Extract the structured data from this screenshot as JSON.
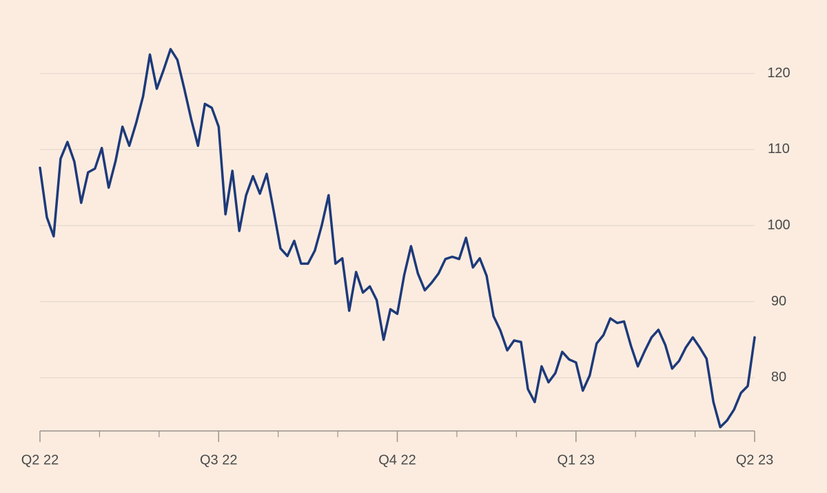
{
  "chart_data": {
    "type": "line",
    "categories": [
      "Q2 22",
      null,
      null,
      null,
      null,
      null,
      null,
      null,
      null,
      null,
      null,
      null,
      null,
      null,
      null,
      null,
      null,
      null,
      null,
      null,
      null,
      null,
      null,
      null,
      null,
      null,
      "Q3 22",
      null,
      null,
      null,
      null,
      null,
      null,
      null,
      null,
      null,
      null,
      null,
      null,
      null,
      null,
      null,
      null,
      null,
      null,
      null,
      null,
      null,
      null,
      null,
      null,
      null,
      "Q4 22",
      null,
      null,
      null,
      null,
      null,
      null,
      null,
      null,
      null,
      null,
      null,
      null,
      null,
      null,
      null,
      null,
      null,
      null,
      null,
      null,
      null,
      null,
      null,
      null,
      null,
      "Q1 23",
      null,
      null,
      null,
      null,
      null,
      null,
      null,
      null,
      null,
      null,
      null,
      null,
      null,
      null,
      null,
      null,
      null,
      null,
      null,
      null,
      null,
      null,
      null,
      null,
      null,
      "Q2 23"
    ],
    "values": [
      107.6,
      101.1,
      98.6,
      108.8,
      111,
      108.4,
      103,
      107,
      107.5,
      110.2,
      105,
      108.5,
      113,
      110.5,
      113.5,
      117,
      122.5,
      118,
      120.5,
      123.2,
      121.8,
      118,
      114,
      110.5,
      116,
      115.5,
      113,
      101.5,
      107.2,
      99.3,
      104,
      106.5,
      104.2,
      106.8,
      102,
      97,
      96,
      98,
      95,
      95,
      96.7,
      100,
      104,
      95,
      95.7,
      88.8,
      93.9,
      91.2,
      92,
      90.2,
      85,
      89,
      88.4,
      93.5,
      97.3,
      93.7,
      91.5,
      92.5,
      93.7,
      95.6,
      95.9,
      95.6,
      98.4,
      94.5,
      95.7,
      93.4,
      88.1,
      86.2,
      83.6,
      84.9,
      84.7,
      78.5,
      76.8,
      81.5,
      79.4,
      80.6,
      83.4,
      82.4,
      82,
      78.3,
      80.3,
      84.5,
      85.6,
      87.8,
      87.2,
      87.4,
      84.2,
      81.5,
      83.5,
      85.3,
      86.3,
      84.3,
      81.2,
      82.2,
      84,
      85.3,
      84,
      82.5,
      76.8,
      73.5,
      74.4,
      75.8,
      78,
      78.9,
      85.3
    ],
    "color": "#1d3a7a",
    "ylim": [
      73,
      124.5
    ],
    "yticks": [
      80,
      90,
      100,
      110,
      120
    ],
    "grid": true
  }
}
